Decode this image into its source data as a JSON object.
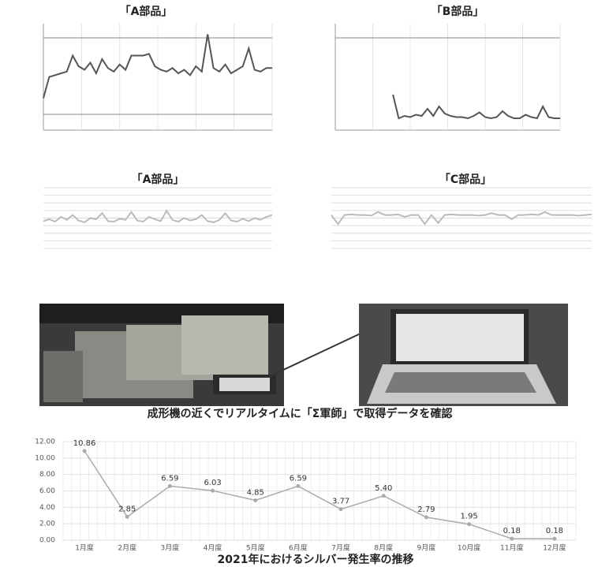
{
  "caption": "成形機の近くでリアルタイムに「Σ軍師」で取得データを確認",
  "chart_data": [
    {
      "type": "line",
      "title": "「A部品」",
      "color": "#555555",
      "ylim": [
        30,
        90
      ],
      "values": [
        48,
        60,
        61,
        62,
        63,
        72,
        66,
        64,
        68,
        62,
        70,
        65,
        63,
        67,
        64,
        72,
        72,
        72,
        73,
        66,
        64,
        63,
        65,
        62,
        64,
        61,
        66,
        63,
        84,
        65,
        63,
        67,
        62,
        64,
        66,
        76,
        64,
        63,
        65,
        65
      ]
    },
    {
      "type": "line",
      "title": "「B部品」",
      "color": "#555555",
      "ylim": [
        0,
        90
      ],
      "values": [
        null,
        null,
        null,
        null,
        null,
        null,
        null,
        null,
        null,
        null,
        30,
        10,
        12,
        11,
        13,
        12,
        18,
        12,
        20,
        14,
        12,
        11,
        11,
        10,
        12,
        15,
        11,
        10,
        11,
        16,
        12,
        10,
        10,
        13,
        11,
        10,
        20,
        11,
        10,
        10
      ]
    },
    {
      "type": "line",
      "title": "「A部品」",
      "color": "#bbbbbb",
      "ylim": [
        0,
        100
      ],
      "values": [
        45,
        48,
        44,
        52,
        47,
        55,
        46,
        43,
        50,
        48,
        58,
        45,
        44,
        49,
        47,
        60,
        46,
        44,
        52,
        48,
        45,
        62,
        47,
        44,
        50,
        46,
        48,
        55,
        45,
        43,
        47,
        58,
        46,
        44,
        49,
        45,
        50,
        47,
        52,
        55
      ]
    },
    {
      "type": "line",
      "title": "「C部品」",
      "color": "#bbbbbb",
      "ylim": [
        0,
        100
      ],
      "values": [
        55,
        40,
        55,
        56,
        55,
        55,
        54,
        60,
        55,
        55,
        56,
        52,
        55,
        55,
        40,
        55,
        42,
        55,
        56,
        55,
        55,
        55,
        54,
        55,
        58,
        55,
        55,
        48,
        55,
        55,
        56,
        55,
        60,
        55,
        55,
        55,
        55,
        54,
        55,
        56
      ]
    },
    {
      "type": "line",
      "title": "2021年におけるシルバー発生率の推移",
      "color": "#aaaaaa",
      "ylim": [
        0,
        12
      ],
      "yticks": [
        {
          "value": 0,
          "label": "0.00"
        },
        {
          "value": 2,
          "label": "2.00"
        },
        {
          "value": 4,
          "label": "4.00"
        },
        {
          "value": 6,
          "label": "6.00"
        },
        {
          "value": 8,
          "label": "8.00"
        },
        {
          "value": 10,
          "label": "10.00"
        },
        {
          "value": 12,
          "label": "12.00"
        }
      ],
      "categories": [
        "1月度",
        "2月度",
        "3月度",
        "4月度",
        "5月度",
        "6月度",
        "7月度",
        "8月度",
        "9月度",
        "10月度",
        "11月度",
        "12月度"
      ],
      "values": [
        10.86,
        2.85,
        6.59,
        6.03,
        4.85,
        6.59,
        3.77,
        5.4,
        2.79,
        1.95,
        0.18,
        0.18
      ],
      "value_labels": [
        "10.86",
        "2.85",
        "6.59",
        "6.03",
        "4.85",
        "6.59",
        "3.77",
        "5.40",
        "2.79",
        "1.95",
        "0.18",
        "0.18"
      ]
    }
  ]
}
